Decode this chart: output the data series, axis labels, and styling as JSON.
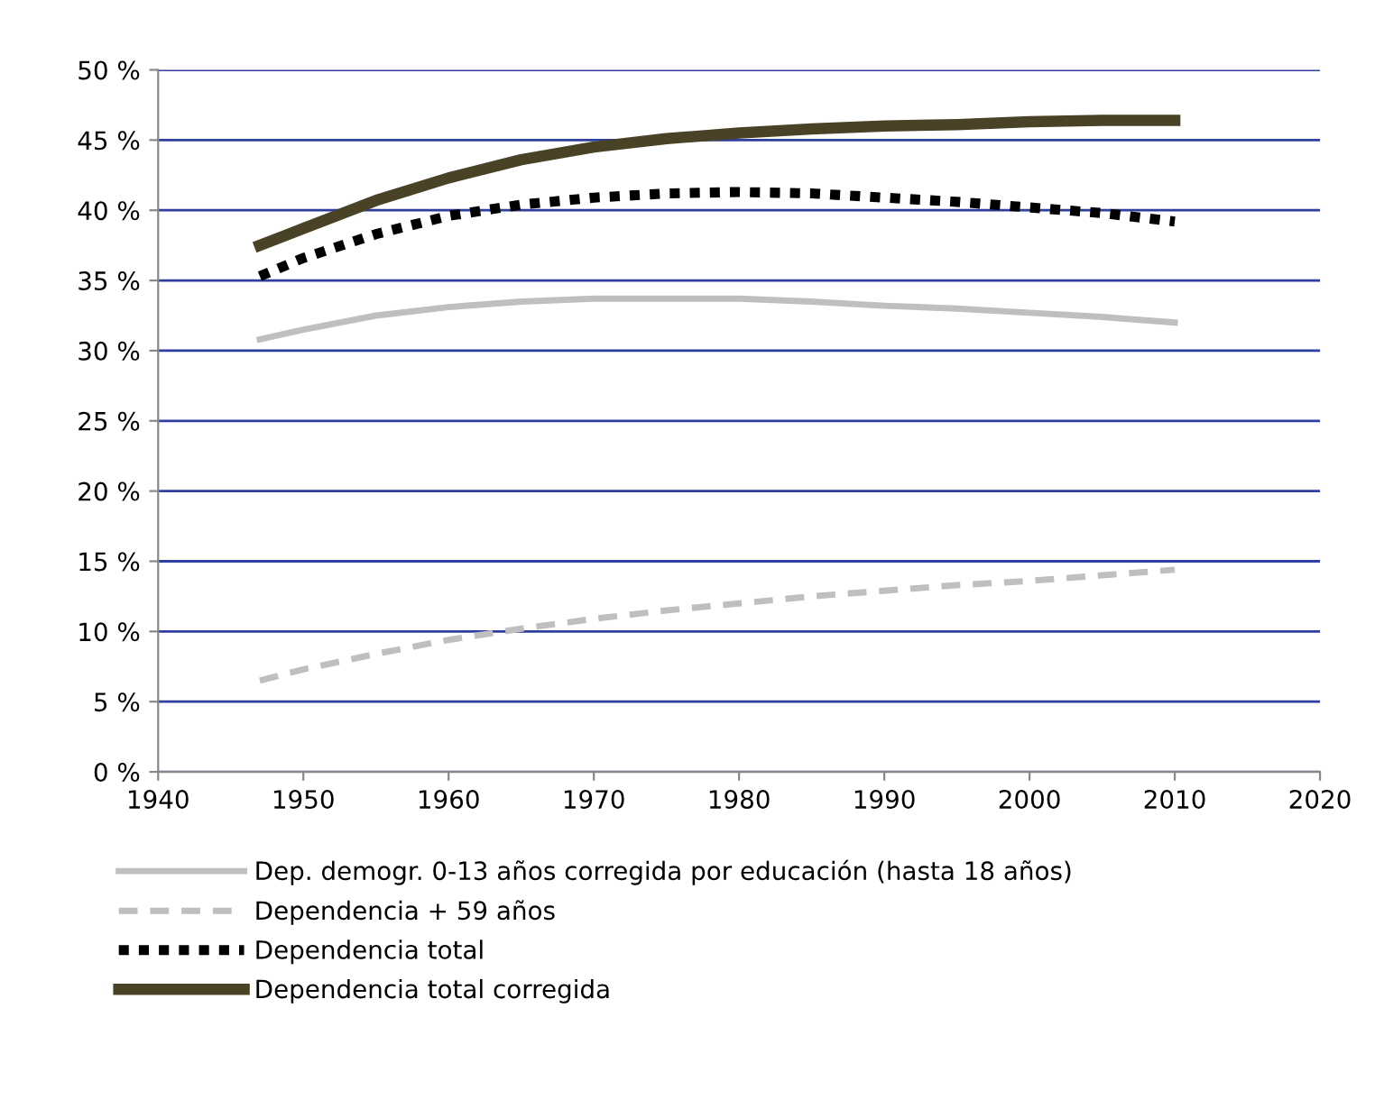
{
  "chart_data": {
    "type": "line",
    "x": [
      1947,
      1950,
      1955,
      1960,
      1965,
      1970,
      1975,
      1980,
      1985,
      1990,
      1995,
      2000,
      2005,
      2010
    ],
    "series": [
      {
        "name": "Dep. demogr. 0-13 años corregida por educación (hasta 18 años)",
        "color": "#bfbfbf",
        "line_style": "solid",
        "values": [
          30.8,
          31.5,
          32.5,
          33.1,
          33.5,
          33.7,
          33.7,
          33.7,
          33.5,
          33.2,
          33.0,
          32.7,
          32.4,
          32.0
        ]
      },
      {
        "name": "Dependencia + 59 años",
        "color": "#bfbfbf",
        "line_style": "dashed",
        "values": [
          6.5,
          7.3,
          8.4,
          9.4,
          10.2,
          10.9,
          11.5,
          12.0,
          12.5,
          12.9,
          13.3,
          13.6,
          14.0,
          14.4
        ]
      },
      {
        "name": "Dependencia total",
        "color": "#000000",
        "line_style": "dotted",
        "values": [
          35.3,
          36.6,
          38.3,
          39.6,
          40.4,
          40.9,
          41.2,
          41.3,
          41.2,
          40.9,
          40.6,
          40.2,
          39.8,
          39.2
        ]
      },
      {
        "name": "Dependencia total corregida",
        "color": "#4a4226",
        "line_style": "solid",
        "values": [
          37.5,
          38.7,
          40.7,
          42.3,
          43.6,
          44.5,
          45.1,
          45.5,
          45.8,
          46.0,
          46.1,
          46.3,
          46.4,
          46.4
        ]
      }
    ],
    "xlim": [
      1940,
      2020
    ],
    "xticks": [
      1940,
      1950,
      1960,
      1970,
      1980,
      1990,
      2000,
      2010,
      2020
    ],
    "ylim": [
      0,
      50
    ],
    "yticks": [
      {
        "value": 0,
        "label": "0 %"
      },
      {
        "value": 5,
        "label": "5 %"
      },
      {
        "value": 10,
        "label": "10 %"
      },
      {
        "value": 15,
        "label": "15 %"
      },
      {
        "value": 20,
        "label": "20 %"
      },
      {
        "value": 25,
        "label": "25 %"
      },
      {
        "value": 30,
        "label": "30 %"
      },
      {
        "value": 35,
        "label": "35 %"
      },
      {
        "value": 40,
        "label": "40 %"
      },
      {
        "value": 45,
        "label": "45 %"
      },
      {
        "value": 50,
        "label": "50 %"
      }
    ],
    "grid": "y",
    "legend": "bottom",
    "marker": "none"
  }
}
